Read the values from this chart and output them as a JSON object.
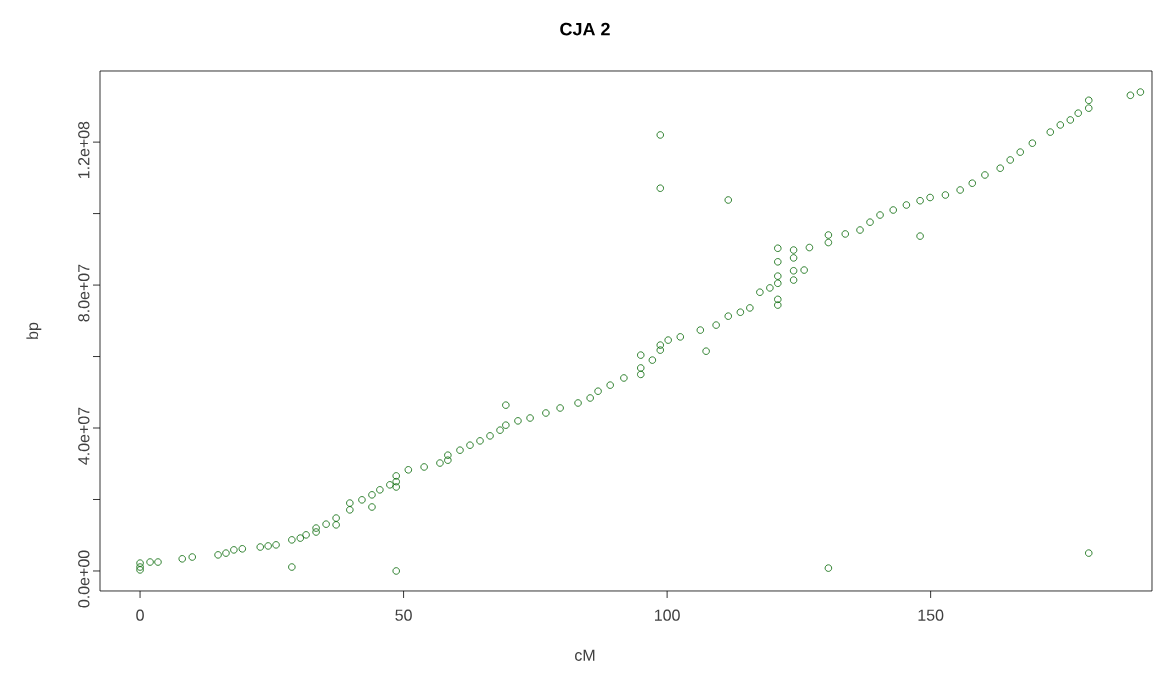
{
  "chart_data": {
    "type": "scatter",
    "title": "CJA 2",
    "xlabel": "cM",
    "ylabel": "bp",
    "marker": "circle",
    "grid": false,
    "xlim": [
      -7.6,
      192
    ],
    "ylim": [
      -5600000,
      139900000
    ],
    "xticks": [
      0,
      50,
      100,
      150
    ],
    "yticks": [
      {
        "value": 0,
        "label": "0.0e+00"
      },
      {
        "value": 20000000,
        "label": null
      },
      {
        "value": 40000000,
        "label": "4.0e+07"
      },
      {
        "value": 60000000,
        "label": null
      },
      {
        "value": 80000000,
        "label": "8.0e+07"
      },
      {
        "value": 100000000,
        "label": null
      },
      {
        "value": 120000000,
        "label": "1.2e+08"
      }
    ],
    "series": [
      {
        "color": "#006400",
        "x": [
          0,
          0,
          0,
          1.9,
          3.4,
          8.0,
          9.9,
          14.8,
          16.3,
          17.8,
          19.4,
          22.8,
          24.3,
          25.8,
          28.8,
          28.8,
          30.4,
          31.5,
          33.4,
          33.4,
          35.3,
          37.2,
          37.2,
          39.8,
          39.8,
          42.1,
          44.0,
          44.0,
          45.5,
          47.4,
          48.6,
          48.6,
          48.6,
          48.6,
          50.9,
          53.9,
          56.9,
          58.4,
          58.4,
          60.7,
          62.6,
          64.5,
          66.4,
          68.3,
          69.4,
          69.4,
          71.7,
          74.0,
          77.0,
          79.7,
          83.1,
          85.4,
          86.9,
          89.2,
          91.8,
          95,
          95,
          95,
          97.2,
          98.7,
          98.7,
          98.7,
          98.7,
          100.2,
          102.5,
          106.3,
          107.4,
          109.3,
          111.6,
          111.6,
          113.9,
          115.7,
          117.6,
          119.5,
          121,
          121,
          121,
          121,
          121,
          121,
          124,
          124,
          124,
          124,
          126,
          127,
          130.6,
          130.6,
          130.6,
          133.8,
          136.6,
          138.5,
          140.4,
          142.9,
          145.4,
          148,
          148,
          149.9,
          152.8,
          155.6,
          157.9,
          160.3,
          163.2,
          165.1,
          167,
          169.3,
          172.7,
          174.6,
          176.5,
          178,
          180,
          180,
          180,
          187.9,
          189.8
        ],
        "values": [
          2200000,
          1100000,
          300000,
          2500000,
          2500000,
          3400000,
          3900000,
          4500000,
          5000000,
          5900000,
          6200000,
          6700000,
          7000000,
          7300000,
          8700000,
          1100000,
          9200000,
          10100000,
          12000000,
          10900000,
          13100000,
          14800000,
          12900000,
          17100000,
          19000000,
          19900000,
          17900000,
          21300000,
          22700000,
          24100000,
          26600000,
          23500000,
          0,
          25000000,
          28300000,
          29100000,
          30200000,
          31000000,
          32400000,
          33800000,
          35200000,
          36400000,
          37800000,
          39400000,
          40800000,
          46400000,
          42000000,
          42800000,
          44200000,
          45600000,
          47000000,
          48400000,
          50300000,
          52000000,
          54000000,
          56800000,
          55000000,
          60400000,
          59000000,
          63200000,
          61800000,
          122000000,
          107100000,
          64600000,
          65500000,
          67400000,
          61500000,
          68800000,
          71300000,
          103800000,
          72400000,
          73600000,
          78000000,
          79200000,
          74400000,
          76000000,
          80500000,
          82500000,
          86500000,
          90300000,
          81400000,
          84000000,
          87600000,
          89800000,
          84200000,
          90500000,
          91900000,
          94000000,
          800000,
          94300000,
          95400000,
          97600000,
          99600000,
          101000000,
          102400000,
          93700000,
          103600000,
          104500000,
          105200000,
          106600000,
          108500000,
          110800000,
          112700000,
          115000000,
          117200000,
          119700000,
          122800000,
          124800000,
          126200000,
          128100000,
          5000000,
          131700000,
          129500000,
          133100000,
          134000000
        ]
      }
    ]
  }
}
